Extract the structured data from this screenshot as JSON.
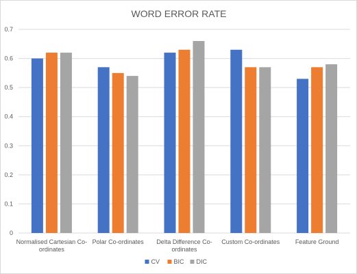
{
  "chart_data": {
    "type": "bar",
    "title": "WORD ERROR RATE",
    "categories": [
      [
        "Normalised Cartesian Co-",
        "ordinates"
      ],
      [
        "Polar Co-ordinates"
      ],
      [
        "Delta Difference Co-",
        "ordinates"
      ],
      [
        "Custom Co-ordinates"
      ],
      [
        "Feature Ground"
      ]
    ],
    "series": [
      {
        "name": "CV",
        "color": "#4472c4",
        "values": [
          0.6,
          0.57,
          0.62,
          0.63,
          0.53
        ]
      },
      {
        "name": "BIC",
        "color": "#ed7d31",
        "values": [
          0.62,
          0.55,
          0.63,
          0.57,
          0.57
        ]
      },
      {
        "name": "DIC",
        "color": "#a5a5a5",
        "values": [
          0.62,
          0.54,
          0.66,
          0.57,
          0.58
        ]
      }
    ],
    "ylim": [
      0,
      0.7
    ],
    "yticks": [
      "0",
      "0.1",
      "0.2",
      "0.3",
      "0.4",
      "0.5",
      "0.6",
      "0.7"
    ],
    "ytick_values": [
      0,
      0.1,
      0.2,
      0.3,
      0.4,
      0.5,
      0.6,
      0.7
    ],
    "grid": true,
    "legend_position": "bottom",
    "gridline_color": "#d9d9d9"
  }
}
